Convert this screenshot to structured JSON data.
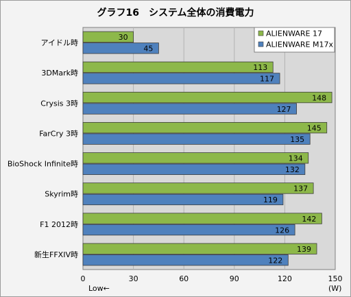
{
  "chart_data": {
    "type": "bar",
    "orientation": "horizontal",
    "title": "グラフ16　システム全体の消費電力",
    "categories": [
      "アイドル時",
      "3DMark時",
      "Crysis 3時",
      "FarCry 3時",
      "BioShock Infinite時",
      "Skyrim時",
      "F1 2012時",
      "新生FFXIV時"
    ],
    "series": [
      {
        "name": "ALIENWARE 17",
        "color": "#8db84a",
        "values": [
          30,
          113,
          148,
          145,
          134,
          137,
          142,
          139
        ]
      },
      {
        "name": "ALIENWARE M17x",
        "color": "#4f81bd",
        "values": [
          45,
          117,
          127,
          135,
          132,
          119,
          126,
          122
        ]
      }
    ],
    "xlim": [
      0,
      150
    ],
    "xticks": [
      0,
      30,
      60,
      90,
      120,
      150
    ],
    "xunit": "(W)",
    "xnote": "Low←",
    "legend_position": "top-right",
    "grid": true
  }
}
